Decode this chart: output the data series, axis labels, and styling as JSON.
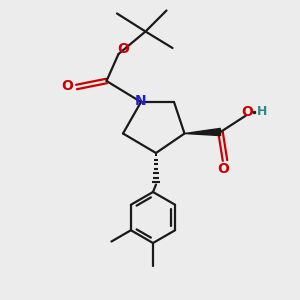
{
  "bg_color": "#ececec",
  "bond_color": "#1a1a1a",
  "N_color": "#2020cc",
  "O_color": "#cc0000",
  "H_color": "#338888",
  "lw": 1.6,
  "xlim": [
    0,
    10
  ],
  "ylim": [
    0,
    10
  ]
}
